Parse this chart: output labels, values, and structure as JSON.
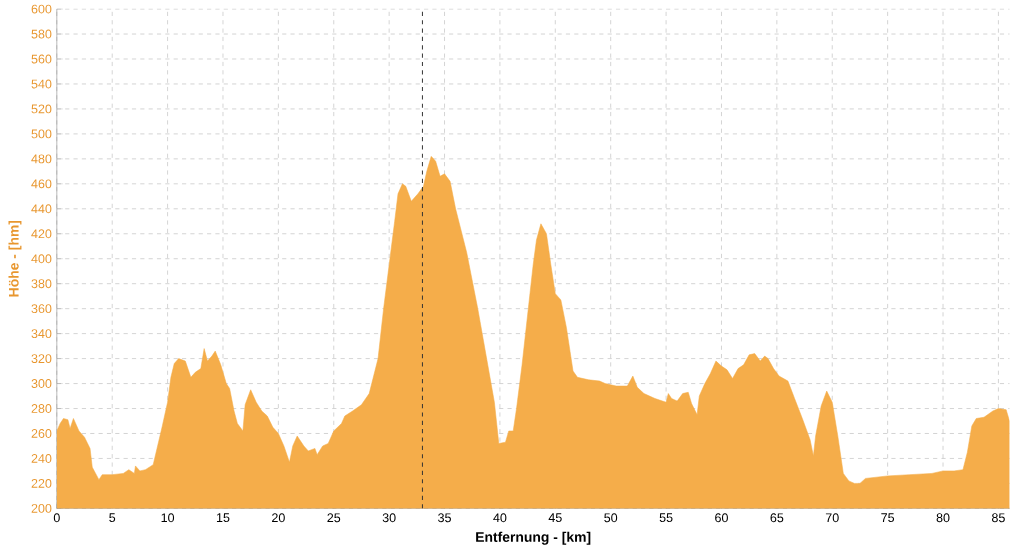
{
  "chart_data": {
    "type": "area",
    "xlabel": "Entfernung - [km]",
    "ylabel": "Höhe - [hm]",
    "xlim": [
      0,
      86
    ],
    "ylim": [
      200,
      600
    ],
    "xticks": [
      0,
      5,
      10,
      15,
      20,
      25,
      30,
      35,
      40,
      45,
      50,
      55,
      60,
      65,
      70,
      75,
      80,
      85
    ],
    "yticks": [
      200,
      220,
      240,
      260,
      280,
      300,
      320,
      340,
      360,
      380,
      400,
      420,
      440,
      460,
      480,
      500,
      520,
      540,
      560,
      580,
      600
    ],
    "grid": true,
    "ref_lines": [
      {
        "axis": "x",
        "value": 33.0,
        "color": "#333333",
        "line_style": "dashed"
      }
    ],
    "series": [
      {
        "color": "#f5ad4a",
        "x": [
          0,
          0.3,
          0.6,
          1.0,
          1.2,
          1.5,
          2.0,
          2.5,
          3.0,
          3.2,
          3.5,
          3.8,
          4.1,
          5,
          6,
          6.5,
          7,
          7.1,
          7.5,
          8,
          8.7,
          9.5,
          10,
          10.3,
          10.6,
          11,
          11.6,
          12.1,
          12.5,
          13,
          13.3,
          13.6,
          14,
          14.3,
          14.8,
          15.3,
          15.6,
          16,
          16.3,
          16.8,
          17,
          17.5,
          18,
          18.5,
          19,
          19.5,
          20,
          20.5,
          21,
          21.3,
          21.7,
          22.3,
          22.7,
          23.3,
          23.5,
          24,
          24.5,
          25,
          25.7,
          26,
          26.7,
          27.5,
          28.2,
          29,
          29.5,
          30,
          30.5,
          30.8,
          31.2,
          31.5,
          32,
          32.6,
          33.1,
          33.4,
          33.8,
          34.2,
          34.6,
          35,
          35.5,
          36,
          37,
          38,
          39,
          39.5,
          39.9,
          40.5,
          40.8,
          41.2,
          41.5,
          42,
          42.5,
          43,
          43.3,
          43.7,
          44.2,
          44.6,
          45,
          45.5,
          46,
          46.6,
          47,
          48,
          49,
          49.5,
          50.5,
          51.5,
          52,
          52.4,
          53,
          54,
          55,
          55.2,
          55.5,
          56,
          56.5,
          57,
          57.3,
          57.8,
          58,
          58.5,
          59,
          59.5,
          60,
          60.5,
          61,
          61.5,
          62,
          62.5,
          63,
          63.5,
          63.9,
          64.2,
          64.7,
          65.2,
          66,
          66.6,
          67.3,
          68,
          68.3,
          68.5,
          69,
          69.5,
          70,
          70.5,
          71,
          71.5,
          72,
          72.5,
          73,
          74,
          75,
          77,
          79,
          80,
          81,
          81.8,
          82.2,
          82.6,
          83,
          83.7,
          84.5,
          85,
          85.7,
          86
        ],
        "values": [
          262,
          268,
          272,
          271,
          264,
          272,
          262,
          257,
          248,
          233,
          228,
          223,
          227,
          227,
          228,
          231,
          228,
          234,
          230,
          231,
          235,
          265,
          285,
          305,
          316,
          320,
          318,
          305,
          309,
          312,
          328,
          318,
          322,
          326,
          315,
          300,
          296,
          278,
          268,
          262,
          283,
          295,
          285,
          278,
          274,
          265,
          260,
          250,
          237,
          250,
          258,
          250,
          246,
          248,
          243,
          250,
          252,
          262,
          268,
          274,
          278,
          283,
          292,
          320,
          360,
          395,
          430,
          452,
          460,
          458,
          446,
          452,
          458,
          470,
          482,
          478,
          466,
          468,
          462,
          440,
          405,
          360,
          310,
          285,
          252,
          253,
          262,
          262,
          280,
          315,
          355,
          395,
          415,
          428,
          420,
          395,
          372,
          367,
          345,
          310,
          305,
          303,
          302,
          300,
          298,
          298,
          306,
          297,
          292,
          288,
          285,
          292,
          288,
          286,
          292,
          293,
          284,
          275,
          290,
          300,
          308,
          318,
          314,
          311,
          304,
          312,
          315,
          323,
          324,
          318,
          322,
          320,
          312,
          306,
          302,
          288,
          272,
          255,
          242,
          258,
          282,
          294,
          285,
          258,
          228,
          222,
          220,
          220,
          224,
          225,
          226,
          227,
          228,
          230,
          230,
          231,
          245,
          266,
          272,
          273,
          278,
          280,
          279,
          270
        ]
      }
    ]
  }
}
